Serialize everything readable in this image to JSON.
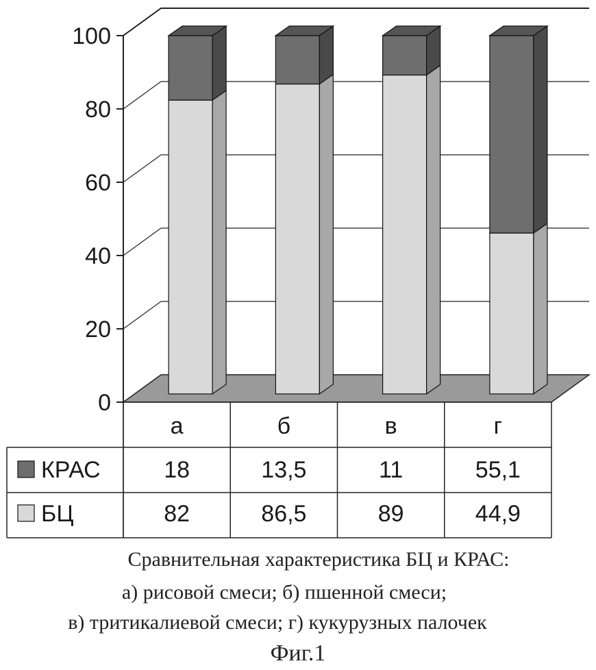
{
  "chart_data": {
    "type": "bar",
    "stacked": true,
    "three_d": true,
    "categories": [
      "а",
      "б",
      "в",
      "г"
    ],
    "series": [
      {
        "name": "БЦ",
        "values": [
          82,
          86.5,
          89,
          44.9
        ],
        "color": "#d9d9d9"
      },
      {
        "name": "КРАС",
        "values": [
          18,
          13.5,
          11,
          55.1
        ],
        "color": "#6e6e6e"
      }
    ],
    "table_rows": [
      {
        "name": "КРАС",
        "values": [
          "18",
          "13,5",
          "11",
          "55,1"
        ]
      },
      {
        "name": "БЦ",
        "values": [
          "82",
          "86,5",
          "89",
          "44,9"
        ]
      }
    ],
    "y_ticks": [
      "0",
      "20",
      "40",
      "60",
      "80",
      "100"
    ],
    "ylim": [
      0,
      100
    ],
    "grid": true,
    "legend": "data-table-left"
  },
  "caption": {
    "line1": "Сравнительная характеристика БЦ и КРАС:",
    "line2": "а) рисовой смеси; б) пшенной смеси;",
    "line3": "в) тритикалиевой смеси; г) кукурузных палочек",
    "figure": "Фиг.1"
  }
}
